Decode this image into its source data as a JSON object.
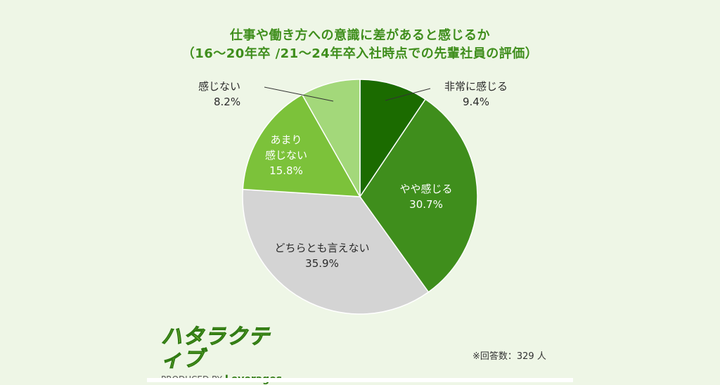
{
  "title": {
    "line1": "仕事や働き方への意識に差があると感じるか",
    "line2": "（16～20年卒 /21～24年卒入社時点での先輩社員の評価）"
  },
  "chart_data": {
    "type": "pie",
    "start": "12 o'clock",
    "direction": "clockwise",
    "slices": [
      {
        "label": "非常に感じる",
        "value": 9.4,
        "display": "9.4%",
        "color": "#1b6b00"
      },
      {
        "label": "やや感じる",
        "value": 30.7,
        "display": "30.7%",
        "color": "#3f8e1c"
      },
      {
        "label": "どちらとも言えない",
        "value": 35.9,
        "display": "35.9%",
        "color": "#d4d4d4"
      },
      {
        "label_lines": [
          "あまり",
          "感じない"
        ],
        "value": 15.8,
        "display": "15.8%",
        "color": "#7cc23a"
      },
      {
        "label": "感じない",
        "value": 8.2,
        "display": "8.2%",
        "color": "#a3d87a"
      }
    ]
  },
  "logo": {
    "mark": "ハタラクティブ",
    "produced_by": "PRODUCED BY",
    "brand": "Leverages"
  },
  "note": "※回答数：329 人"
}
